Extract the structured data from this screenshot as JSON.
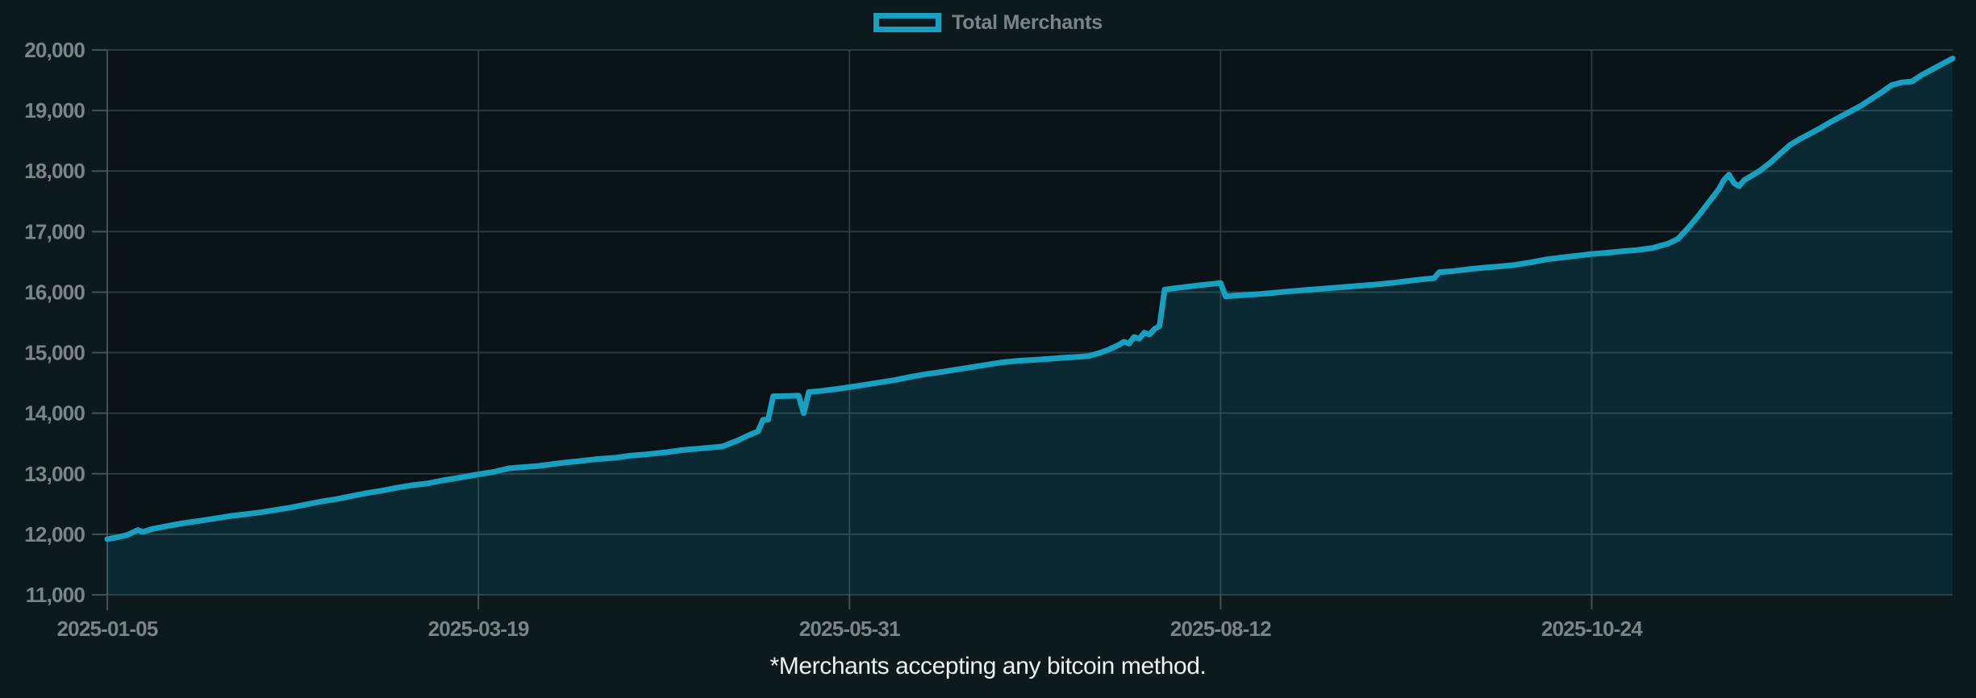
{
  "legend": {
    "label": "Total Merchants"
  },
  "footnote": "*Merchants accepting any bitcoin method.",
  "colors": {
    "page_bg": "#0d1a1d",
    "plot_bg": "#091318",
    "line": "#17a0c0",
    "area_fill": "rgba(23,160,192,0.16)",
    "grid": "#2e393c",
    "axis": "#455052",
    "tick_label": "#7b848a",
    "legend_label": "#7b848a",
    "footnote_text": "#edf3f3"
  },
  "chart_data": {
    "type": "area",
    "title": "",
    "xlabel": "",
    "ylabel": "",
    "grid": true,
    "legend_position": "top-center",
    "ylim": [
      11000,
      20000
    ],
    "y_ticks": [
      11000,
      12000,
      13000,
      14000,
      15000,
      16000,
      17000,
      18000,
      19000,
      20000
    ],
    "x_ticks": [
      "2025-01-05",
      "2025-03-19",
      "2025-05-31",
      "2025-08-12",
      "2025-10-24"
    ],
    "x_domain": [
      "2025-01-05",
      "2026-01-03"
    ],
    "series": [
      {
        "name": "Total Merchants",
        "points": [
          [
            "2025-01-05",
            11920
          ],
          [
            "2025-01-07",
            11950
          ],
          [
            "2025-01-09",
            11990
          ],
          [
            "2025-01-11",
            12070
          ],
          [
            "2025-01-12",
            12040
          ],
          [
            "2025-01-14",
            12090
          ],
          [
            "2025-01-17",
            12140
          ],
          [
            "2025-01-20",
            12185
          ],
          [
            "2025-01-23",
            12220
          ],
          [
            "2025-01-26",
            12260
          ],
          [
            "2025-01-29",
            12300
          ],
          [
            "2025-02-01",
            12330
          ],
          [
            "2025-02-04",
            12360
          ],
          [
            "2025-02-07",
            12400
          ],
          [
            "2025-02-10",
            12440
          ],
          [
            "2025-02-13",
            12490
          ],
          [
            "2025-02-16",
            12540
          ],
          [
            "2025-02-19",
            12580
          ],
          [
            "2025-02-22",
            12630
          ],
          [
            "2025-02-25",
            12680
          ],
          [
            "2025-02-28",
            12720
          ],
          [
            "2025-03-03",
            12770
          ],
          [
            "2025-03-06",
            12810
          ],
          [
            "2025-03-09",
            12840
          ],
          [
            "2025-03-12",
            12890
          ],
          [
            "2025-03-15",
            12930
          ],
          [
            "2025-03-19",
            12990
          ],
          [
            "2025-03-22",
            13030
          ],
          [
            "2025-03-25",
            13090
          ],
          [
            "2025-03-28",
            13110
          ],
          [
            "2025-03-31",
            13130
          ],
          [
            "2025-04-04",
            13175
          ],
          [
            "2025-04-08",
            13210
          ],
          [
            "2025-04-11",
            13240
          ],
          [
            "2025-04-15",
            13265
          ],
          [
            "2025-04-18",
            13300
          ],
          [
            "2025-04-21",
            13320
          ],
          [
            "2025-04-25",
            13355
          ],
          [
            "2025-04-28",
            13390
          ],
          [
            "2025-05-02",
            13420
          ],
          [
            "2025-05-06",
            13450
          ],
          [
            "2025-05-09",
            13550
          ],
          [
            "2025-05-11",
            13630
          ],
          [
            "2025-05-13",
            13700
          ],
          [
            "2025-05-14",
            13890
          ],
          [
            "2025-05-15",
            13895
          ],
          [
            "2025-05-16",
            14280
          ],
          [
            "2025-05-19",
            14285
          ],
          [
            "2025-05-21",
            14290
          ],
          [
            "2025-05-22",
            14000
          ],
          [
            "2025-05-23",
            14350
          ],
          [
            "2025-05-25",
            14365
          ],
          [
            "2025-05-28",
            14395
          ],
          [
            "2025-05-31",
            14430
          ],
          [
            "2025-06-03",
            14470
          ],
          [
            "2025-06-06",
            14510
          ],
          [
            "2025-06-09",
            14550
          ],
          [
            "2025-06-12",
            14600
          ],
          [
            "2025-06-15",
            14645
          ],
          [
            "2025-06-18",
            14680
          ],
          [
            "2025-06-21",
            14720
          ],
          [
            "2025-06-24",
            14760
          ],
          [
            "2025-06-27",
            14800
          ],
          [
            "2025-06-30",
            14840
          ],
          [
            "2025-07-03",
            14865
          ],
          [
            "2025-07-06",
            14880
          ],
          [
            "2025-07-09",
            14895
          ],
          [
            "2025-07-12",
            14915
          ],
          [
            "2025-07-15",
            14930
          ],
          [
            "2025-07-17",
            14945
          ],
          [
            "2025-07-19",
            14990
          ],
          [
            "2025-07-21",
            15050
          ],
          [
            "2025-07-23",
            15130
          ],
          [
            "2025-07-24",
            15180
          ],
          [
            "2025-07-25",
            15150
          ],
          [
            "2025-07-26",
            15260
          ],
          [
            "2025-07-27",
            15230
          ],
          [
            "2025-07-28",
            15330
          ],
          [
            "2025-07-29",
            15300
          ],
          [
            "2025-07-30",
            15390
          ],
          [
            "2025-07-31",
            15440
          ],
          [
            "2025-08-01",
            16040
          ],
          [
            "2025-08-04",
            16075
          ],
          [
            "2025-08-08",
            16115
          ],
          [
            "2025-08-12",
            16150
          ],
          [
            "2025-08-13",
            15930
          ],
          [
            "2025-08-16",
            15950
          ],
          [
            "2025-08-19",
            15965
          ],
          [
            "2025-08-22",
            15985
          ],
          [
            "2025-08-25",
            16010
          ],
          [
            "2025-08-28",
            16030
          ],
          [
            "2025-08-31",
            16050
          ],
          [
            "2025-09-03",
            16070
          ],
          [
            "2025-09-06",
            16090
          ],
          [
            "2025-09-09",
            16110
          ],
          [
            "2025-09-12",
            16130
          ],
          [
            "2025-09-15",
            16155
          ],
          [
            "2025-09-18",
            16185
          ],
          [
            "2025-09-21",
            16215
          ],
          [
            "2025-09-23",
            16230
          ],
          [
            "2025-09-24",
            16330
          ],
          [
            "2025-09-27",
            16350
          ],
          [
            "2025-09-30",
            16380
          ],
          [
            "2025-10-03",
            16405
          ],
          [
            "2025-10-06",
            16425
          ],
          [
            "2025-10-09",
            16450
          ],
          [
            "2025-10-12",
            16490
          ],
          [
            "2025-10-15",
            16540
          ],
          [
            "2025-10-18",
            16570
          ],
          [
            "2025-10-21",
            16600
          ],
          [
            "2025-10-24",
            16630
          ],
          [
            "2025-10-27",
            16650
          ],
          [
            "2025-10-30",
            16675
          ],
          [
            "2025-11-02",
            16695
          ],
          [
            "2025-11-05",
            16730
          ],
          [
            "2025-11-08",
            16800
          ],
          [
            "2025-11-10",
            16880
          ],
          [
            "2025-11-12",
            17060
          ],
          [
            "2025-11-14",
            17260
          ],
          [
            "2025-11-16",
            17480
          ],
          [
            "2025-11-18",
            17700
          ],
          [
            "2025-11-19",
            17850
          ],
          [
            "2025-11-20",
            17940
          ],
          [
            "2025-11-21",
            17800
          ],
          [
            "2025-11-22",
            17750
          ],
          [
            "2025-11-23",
            17850
          ],
          [
            "2025-11-24",
            17900
          ],
          [
            "2025-11-26",
            18000
          ],
          [
            "2025-11-28",
            18130
          ],
          [
            "2025-11-30",
            18280
          ],
          [
            "2025-12-02",
            18430
          ],
          [
            "2025-12-04",
            18530
          ],
          [
            "2025-12-06",
            18620
          ],
          [
            "2025-12-08",
            18710
          ],
          [
            "2025-12-10",
            18810
          ],
          [
            "2025-12-12",
            18900
          ],
          [
            "2025-12-14",
            18990
          ],
          [
            "2025-12-16",
            19080
          ],
          [
            "2025-12-18",
            19190
          ],
          [
            "2025-12-20",
            19300
          ],
          [
            "2025-12-22",
            19420
          ],
          [
            "2025-12-24",
            19465
          ],
          [
            "2025-12-26",
            19480
          ],
          [
            "2025-12-28",
            19590
          ],
          [
            "2025-12-30",
            19680
          ],
          [
            "2026-01-01",
            19770
          ],
          [
            "2026-01-03",
            19860
          ]
        ]
      }
    ]
  }
}
